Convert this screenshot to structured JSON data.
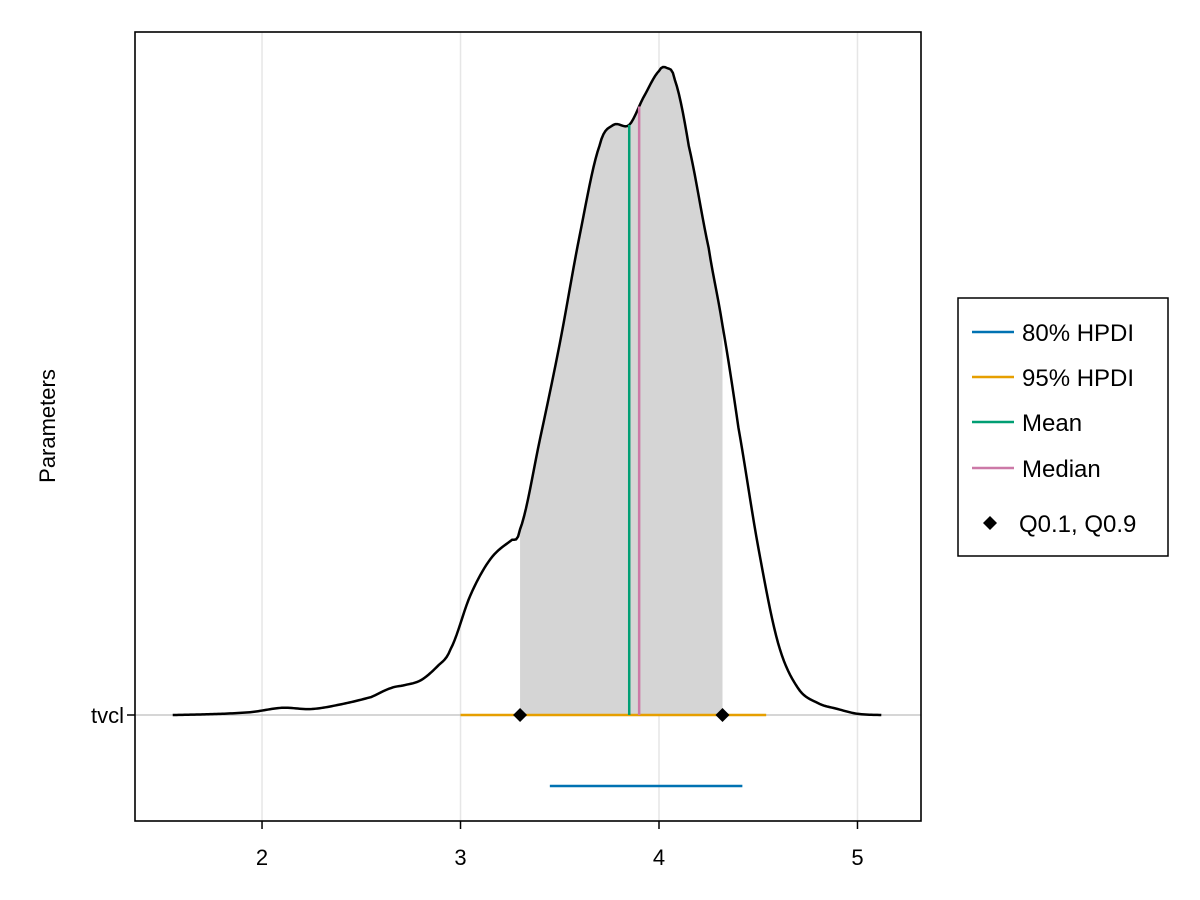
{
  "chart_data": {
    "type": "density",
    "xlabel": "",
    "ylabel": "Parameters",
    "xlim": [
      1.36,
      5.32
    ],
    "xticks": [
      "2",
      "3",
      "4",
      "5"
    ],
    "grid": true,
    "legend_position": "right",
    "parameter": "tvcl",
    "density_curve": {
      "x": [
        1.55,
        1.8,
        1.95,
        2.1,
        2.25,
        2.4,
        2.55,
        2.65,
        2.72,
        2.8,
        2.88,
        2.95,
        3.05,
        3.15,
        3.25,
        3.3,
        3.4,
        3.5,
        3.6,
        3.7,
        3.77,
        3.85,
        3.92,
        4.0,
        4.04,
        4.08,
        4.15,
        4.25,
        4.32,
        4.4,
        4.5,
        4.6,
        4.7,
        4.8,
        4.9,
        5.0,
        5.12
      ],
      "y": [
        0.0,
        0.002,
        0.005,
        0.012,
        0.01,
        0.018,
        0.03,
        0.045,
        0.05,
        0.058,
        0.08,
        0.11,
        0.2,
        0.26,
        0.29,
        0.31,
        0.46,
        0.62,
        0.8,
        0.95,
        0.985,
        0.985,
        1.03,
        1.075,
        1.08,
        1.06,
        0.95,
        0.78,
        0.65,
        0.48,
        0.28,
        0.12,
        0.045,
        0.02,
        0.01,
        0.002,
        0.0
      ]
    },
    "shaded_interval": [
      3.3,
      4.32
    ],
    "series": [
      {
        "name": "80% HPDI",
        "type": "interval",
        "lower": 3.45,
        "upper": 4.42,
        "color": "#0072B2"
      },
      {
        "name": "95% HPDI",
        "type": "interval",
        "lower": 3.0,
        "upper": 4.54,
        "color": "#E69F00"
      },
      {
        "name": "Mean",
        "type": "vline",
        "x": 3.85,
        "color": "#009E73"
      },
      {
        "name": "Median",
        "type": "vline",
        "x": 3.9,
        "color": "#CC79A7"
      },
      {
        "name": "Q0.1, Q0.9",
        "type": "points",
        "x": [
          3.3,
          4.32
        ],
        "color": "#000000"
      }
    ],
    "colors": {
      "density_fill": "#d5d5d5",
      "density_line": "#000000",
      "grid": "#e6e6e6",
      "baseline": "#c8c8c8"
    }
  }
}
